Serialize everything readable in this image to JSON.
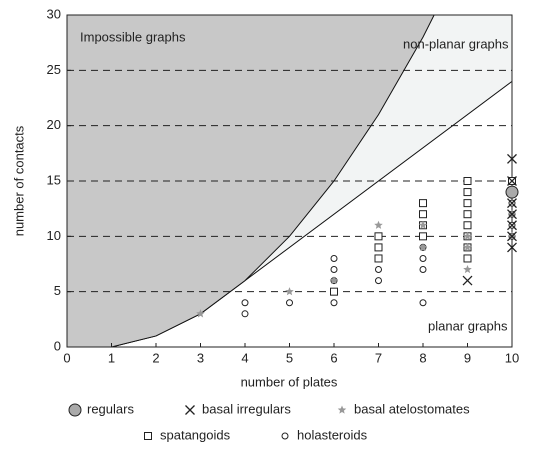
{
  "chart_data": {
    "type": "scatter",
    "x_label": "number of plates",
    "y_label": "number of contacts",
    "xlim": [
      0,
      10
    ],
    "ylim": [
      0,
      30
    ],
    "xticks": [
      0,
      1,
      2,
      3,
      4,
      5,
      6,
      7,
      8,
      9,
      10
    ],
    "yticks": [
      0,
      5,
      10,
      15,
      20,
      25,
      30
    ],
    "grid": "dashed-horizontal",
    "regions": [
      {
        "label": "non-planar graphs",
        "color": "#f2f4f4",
        "x": [
          1,
          2,
          3,
          4,
          10
        ],
        "y": [
          0,
          1,
          3,
          6,
          24
        ]
      },
      {
        "label": "Impossible graphs",
        "color": "#c8c8c8",
        "x": [
          1,
          2,
          3,
          4,
          5,
          6,
          7,
          8,
          8.25
        ],
        "y": [
          0,
          1,
          3,
          6,
          10,
          15,
          21,
          28,
          30
        ]
      }
    ],
    "annotations": [
      "planar graphs"
    ],
    "series": [
      {
        "name": "regulars",
        "marker": "circle-large",
        "color": "#aaaaaa",
        "x": [
          10
        ],
        "y": [
          14
        ]
      },
      {
        "name": "basal irregulars",
        "marker": "x",
        "color": "#222222",
        "x": [
          9,
          10,
          10,
          10,
          10,
          10,
          10,
          10,
          10
        ],
        "y": [
          6,
          9,
          10,
          11,
          12,
          13,
          14,
          15,
          17
        ]
      },
      {
        "name": "basal atelostomates",
        "marker": "star",
        "color": "#999999",
        "x": [
          3,
          5,
          6,
          7,
          8,
          8,
          9,
          9,
          9,
          10,
          10
        ],
        "y": [
          3,
          5,
          6,
          11,
          9,
          11,
          7,
          9,
          10,
          10,
          12
        ]
      },
      {
        "name": "spatangoids",
        "marker": "square",
        "color": "#222222",
        "x": [
          6,
          7,
          7,
          7,
          8,
          8,
          8,
          8,
          9,
          9,
          9,
          9,
          9,
          9,
          9,
          9,
          10,
          10
        ],
        "y": [
          5,
          8,
          9,
          10,
          10,
          11,
          12,
          13,
          8,
          9,
          10,
          11,
          12,
          13,
          14,
          15,
          14,
          15
        ]
      },
      {
        "name": "holasteroids",
        "marker": "circle",
        "color": "#222222",
        "x": [
          4,
          4,
          5,
          6,
          6,
          6,
          6,
          6,
          7,
          7,
          7,
          7,
          8,
          8,
          8,
          8,
          8,
          9,
          9,
          9,
          9,
          9,
          10,
          10,
          10,
          10
        ],
        "y": [
          3,
          4,
          4,
          4,
          5,
          6,
          7,
          8,
          6,
          7,
          8,
          9,
          4,
          7,
          8,
          9,
          10,
          8,
          9,
          10,
          11,
          12,
          10,
          11,
          12,
          13
        ]
      }
    ]
  }
}
